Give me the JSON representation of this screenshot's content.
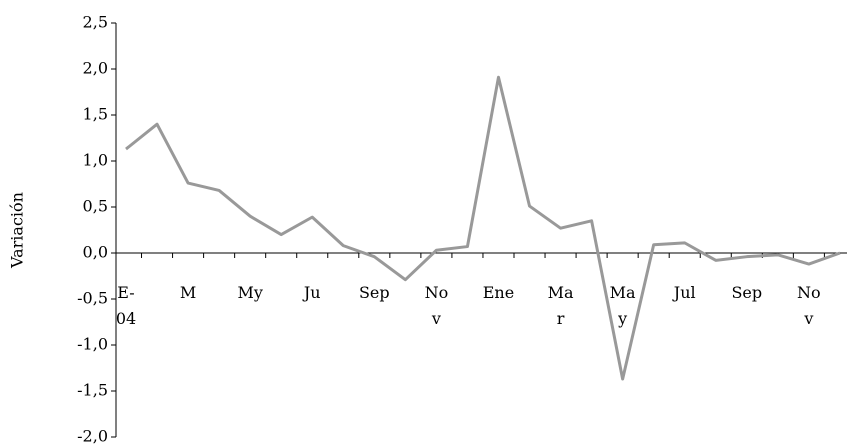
{
  "chart_data": {
    "type": "line",
    "y_label": "Variación",
    "categories": [
      "E-04",
      null,
      "M",
      null,
      "My",
      null,
      "Ju",
      null,
      "Sep",
      null,
      "Nov",
      null,
      "Ene",
      null,
      "Mar",
      null,
      "May",
      null,
      "Jul",
      null,
      "Sep",
      null,
      "Nov",
      null
    ],
    "series": [
      {
        "name": "Variación",
        "color": "#999999",
        "values": [
          1.13,
          1.4,
          0.76,
          0.68,
          0.4,
          0.2,
          0.39,
          0.08,
          -0.04,
          -0.29,
          0.03,
          0.07,
          1.91,
          0.51,
          0.27,
          0.35,
          -1.37,
          0.09,
          0.11,
          -0.08,
          -0.04,
          -0.02,
          -0.12,
          0.0
        ]
      }
    ],
    "ylim": [
      -2.0,
      2.5
    ],
    "yticks": [
      {
        "value": -2.0,
        "label": "-2,0"
      },
      {
        "value": -1.5,
        "label": "-1,5"
      },
      {
        "value": -1.0,
        "label": "-1,0"
      },
      {
        "value": -0.5,
        "label": "-0,5"
      },
      {
        "value": 0.0,
        "label": "0,0"
      },
      {
        "value": 0.5,
        "label": "0,5"
      },
      {
        "value": 1.0,
        "label": "1,0"
      },
      {
        "value": 1.5,
        "label": "1,5"
      },
      {
        "value": 2.0,
        "label": "2,0"
      },
      {
        "value": 2.5,
        "label": "2,5"
      }
    ],
    "grid": false
  }
}
